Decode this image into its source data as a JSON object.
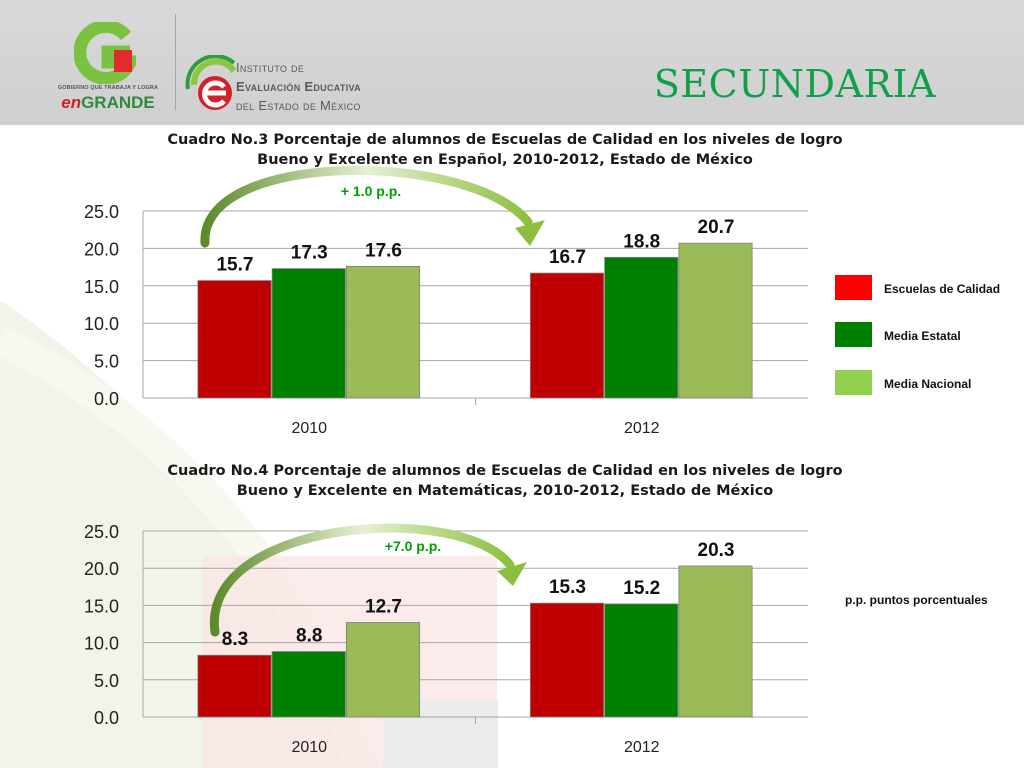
{
  "header": {
    "government_logo": {
      "caption": "GOBIERNO QUE TRABAJA Y LOGRA",
      "brand_prefix": "en",
      "brand_word": "GRANDE",
      "icon": "g-logo-icon"
    },
    "institute_logo": {
      "icon": "e-logo-icon",
      "name_lines": [
        "Instituto de",
        "Evaluación Educativa",
        "del Estado de México"
      ]
    },
    "section_title": "SECUNDARIA"
  },
  "colors": {
    "escuelas_de_calidad": "#c00000",
    "media_estatal": "#008000",
    "media_nacional": "#9bbb59",
    "annotation_green": "#00a000",
    "title_green": "#11a04a"
  },
  "legend": {
    "items": [
      {
        "label": "Escuelas de Calidad",
        "color": "#ff0000"
      },
      {
        "label": "Media Estatal",
        "color": "#008000"
      },
      {
        "label": "Media Nacional",
        "color": "#92d050"
      }
    ]
  },
  "note": "p.p. puntos porcentuales",
  "chart_data": [
    {
      "type": "bar",
      "title_lines": [
        "Cuadro No.3 Porcentaje de alumnos de Escuelas de Calidad en los niveles de logro",
        "Bueno y Excelente en Español, 2010-2012, Estado de México"
      ],
      "categories": [
        "2010",
        "2012"
      ],
      "series": [
        {
          "name": "Escuelas de Calidad",
          "values": [
            15.7,
            16.7
          ],
          "labels": [
            "15.7",
            "16.7"
          ]
        },
        {
          "name": "Media Estatal",
          "values": [
            17.3,
            18.8
          ],
          "labels": [
            "17.3",
            "18.8"
          ]
        },
        {
          "name": "Media Nacional",
          "values": [
            17.6,
            20.7
          ],
          "labels": [
            "17.6",
            "20.7"
          ]
        }
      ],
      "ylim": [
        0,
        25
      ],
      "yticks": [
        "0.0",
        "5.0",
        "10.0",
        "15.0",
        "20.0",
        "25.0"
      ],
      "grid": true,
      "annotation": "+ 1.0 p.p."
    },
    {
      "type": "bar",
      "title_lines": [
        "Cuadro No.4 Porcentaje de alumnos de Escuelas de Calidad en los niveles de logro",
        "Bueno y Excelente en Matemáticas, 2010-2012, Estado de México"
      ],
      "categories": [
        "2010",
        "2012"
      ],
      "series": [
        {
          "name": "Escuelas de Calidad",
          "values": [
            8.3,
            15.3
          ],
          "labels": [
            "8.3",
            "15.3"
          ]
        },
        {
          "name": "Media Estatal",
          "values": [
            8.8,
            15.2
          ],
          "labels": [
            "8.8",
            "15.2"
          ]
        },
        {
          "name": "Media Nacional",
          "values": [
            12.7,
            20.3
          ],
          "labels": [
            "12.7",
            "20.3"
          ]
        }
      ],
      "ylim": [
        0,
        25
      ],
      "yticks": [
        "0.0",
        "5.0",
        "10.0",
        "15.0",
        "20.0",
        "25.0"
      ],
      "grid": true,
      "annotation": "+7.0 p.p."
    }
  ]
}
